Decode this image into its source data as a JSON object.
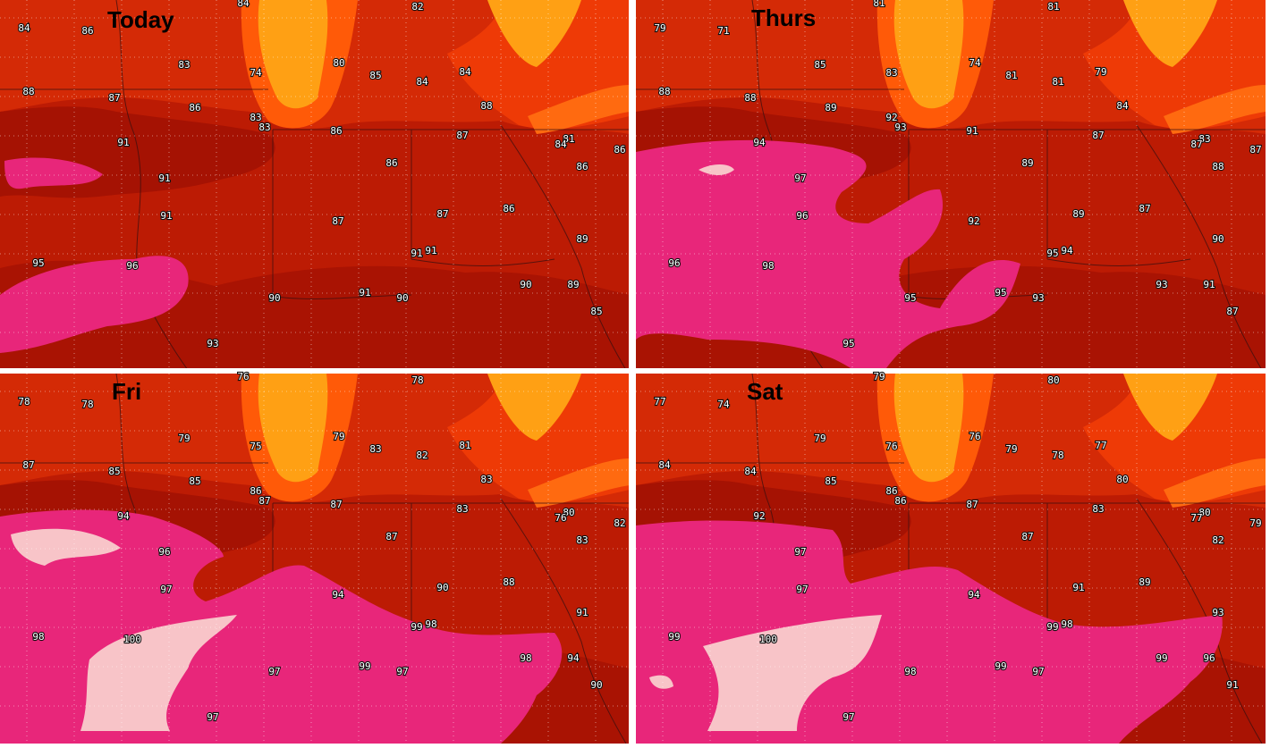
{
  "panels": [
    {
      "title": "Today",
      "labels": [
        84,
        86,
        84,
        82,
        83,
        74,
        80,
        85,
        84,
        84,
        88,
        87,
        86,
        83,
        83,
        86,
        88,
        87,
        81,
        84,
        86,
        91,
        86,
        86,
        91,
        91,
        87,
        87,
        86,
        89,
        95,
        96,
        91,
        91,
        90,
        89,
        91,
        90,
        90,
        85,
        93
      ]
    },
    {
      "title": "Thurs",
      "labels": [
        79,
        71,
        81,
        81,
        85,
        83,
        74,
        81,
        81,
        79,
        88,
        88,
        89,
        92,
        93,
        91,
        84,
        87,
        83,
        87,
        87,
        94,
        89,
        88,
        97,
        96,
        92,
        89,
        87,
        90,
        96,
        98,
        95,
        94,
        93,
        91,
        95,
        93,
        95,
        87,
        95
      ]
    },
    {
      "title": "Fri",
      "labels": [
        78,
        78,
        76,
        78,
        79,
        75,
        79,
        83,
        82,
        81,
        87,
        85,
        85,
        86,
        87,
        87,
        83,
        83,
        80,
        76,
        82,
        94,
        87,
        83,
        96,
        97,
        94,
        90,
        88,
        91,
        98,
        100,
        99,
        98,
        98,
        94,
        99,
        97,
        97,
        90,
        97
      ]
    },
    {
      "title": "Sat",
      "labels": [
        77,
        74,
        79,
        80,
        79,
        76,
        76,
        79,
        78,
        77,
        84,
        84,
        85,
        86,
        86,
        87,
        80,
        83,
        80,
        77,
        79,
        92,
        87,
        82,
        97,
        97,
        94,
        91,
        89,
        93,
        99,
        100,
        99,
        98,
        99,
        96,
        99,
        97,
        98,
        91,
        97
      ]
    }
  ]
}
